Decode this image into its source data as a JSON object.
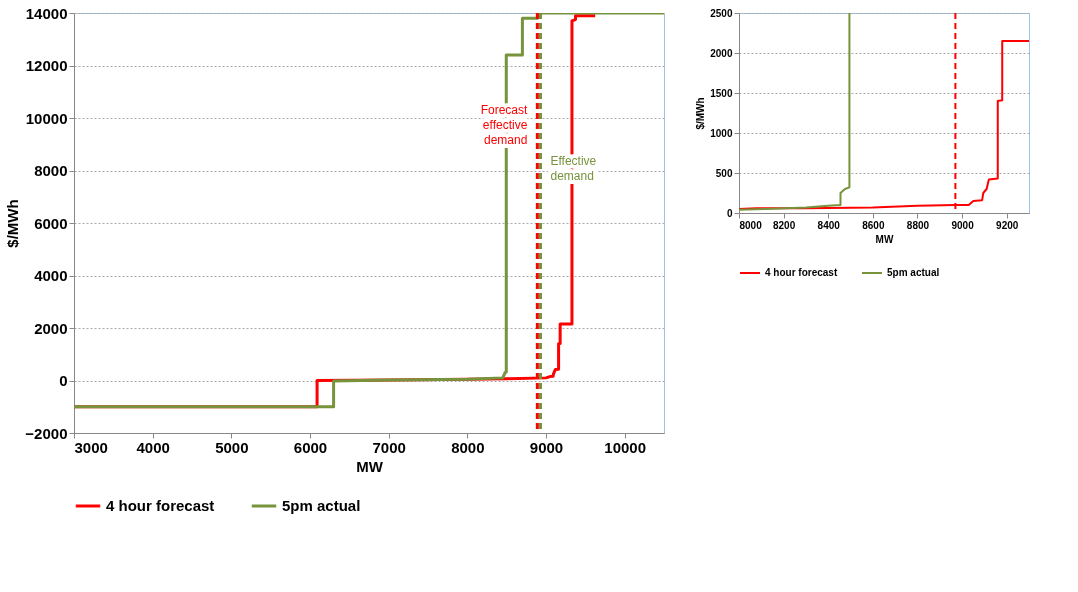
{
  "chart_data": [
    {
      "type": "line",
      "xlabel": "MW",
      "ylabel": "$/MWh",
      "xlim": [
        3000,
        10500
      ],
      "xticks": [
        3000,
        4000,
        5000,
        6000,
        7000,
        8000,
        9000,
        10000
      ],
      "ylim": [
        -2000,
        14000
      ],
      "yticks": [
        -2000,
        0,
        2000,
        4000,
        6000,
        8000,
        10000,
        12000,
        14000
      ],
      "grid": "y",
      "legend": "bottom",
      "marker": "none",
      "line_style": "solid",
      "series": [
        {
          "name": "4 hour forecast",
          "color": "#ff0000",
          "x": [
            3000,
            6090,
            6090,
            7000,
            8000,
            8500,
            9000,
            9050,
            9090,
            9095,
            9120,
            9160,
            9160,
            9180,
            9180,
            9330,
            9330,
            9375,
            9375,
            9625
          ],
          "values": [
            -1000,
            -1000,
            0,
            20,
            50,
            70,
            100,
            150,
            160,
            250,
            420,
            430,
            1400,
            1410,
            2150,
            2150,
            13700,
            13750,
            13900,
            13900
          ]
        },
        {
          "name": "5pm actual",
          "color": "#77933c",
          "x": [
            3000,
            6300,
            6300,
            7000,
            8000,
            8450,
            8480,
            8495,
            8495,
            8700,
            8700,
            8890,
            8910,
            10500
          ],
          "values": [
            -1000,
            -1000,
            -20,
            20,
            50,
            100,
            300,
            320,
            12400,
            12400,
            13800,
            13800,
            14000,
            14000
          ]
        }
      ],
      "ref_lines": [
        {
          "axis": "x",
          "value": 8890,
          "label": "Forecast\neffective\ndemand",
          "color": "#ff0000",
          "line_style": "dashed"
        },
        {
          "axis": "x",
          "value": 8930,
          "label": "Effective\ndemand",
          "color": "#77933c",
          "line_style": "dashed"
        }
      ]
    },
    {
      "type": "line",
      "xlabel": "MW",
      "ylabel": "$/MWh",
      "xlim": [
        8000,
        9300
      ],
      "xticks": [
        8000,
        8200,
        8400,
        8600,
        8800,
        9000,
        9200
      ],
      "ylim": [
        0,
        2500
      ],
      "yticks": [
        0,
        500,
        1000,
        1500,
        2000,
        2500
      ],
      "grid": "y",
      "legend": "bottom",
      "marker": "none",
      "line_style": "solid",
      "series": [
        {
          "name": "4 hour forecast",
          "color": "#ff0000",
          "x": [
            8000,
            8080,
            8300,
            8600,
            8800,
            8970,
            9030,
            9050,
            9090,
            9095,
            9110,
            9120,
            9160,
            9160,
            9180,
            9180,
            9300
          ],
          "values": [
            50,
            60,
            60,
            70,
            90,
            100,
            100,
            150,
            160,
            250,
            300,
            420,
            430,
            1400,
            1410,
            2150,
            2150
          ]
        },
        {
          "name": "5pm actual",
          "color": "#77933c",
          "x": [
            8000,
            8120,
            8300,
            8400,
            8455,
            8455,
            8475,
            8495,
            8495
          ],
          "values": [
            40,
            50,
            70,
            90,
            100,
            250,
            300,
            320,
            2500
          ]
        }
      ],
      "ref_lines": [
        {
          "axis": "x",
          "value": 8970,
          "color": "#ff0000",
          "line_style": "dashed"
        }
      ]
    }
  ]
}
